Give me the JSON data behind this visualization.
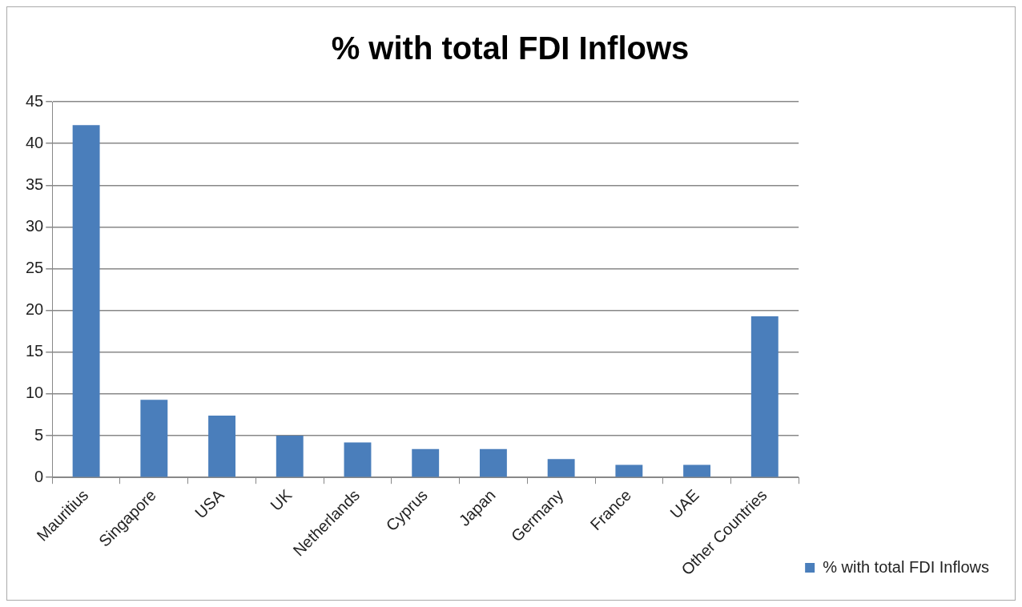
{
  "chart_data": {
    "type": "bar",
    "title": "% with total FDI Inflows",
    "categories": [
      "Mauritius",
      "Singapore",
      "USA",
      "UK",
      "Netherlands",
      "Cyprus",
      "Japan",
      "Germany",
      "France",
      "UAE",
      "Other Countries"
    ],
    "series": [
      {
        "name": "% with total FDI Inflows",
        "color": "#4a7ebb",
        "values": [
          42.2,
          9.3,
          7.4,
          5.0,
          4.2,
          3.4,
          3.4,
          2.2,
          1.5,
          1.5,
          19.3
        ]
      }
    ],
    "ylim": [
      0,
      45
    ],
    "yticks": [
      0,
      5,
      10,
      15,
      20,
      25,
      30,
      35,
      40,
      45
    ],
    "grid": "y",
    "legend": "bottom right"
  }
}
